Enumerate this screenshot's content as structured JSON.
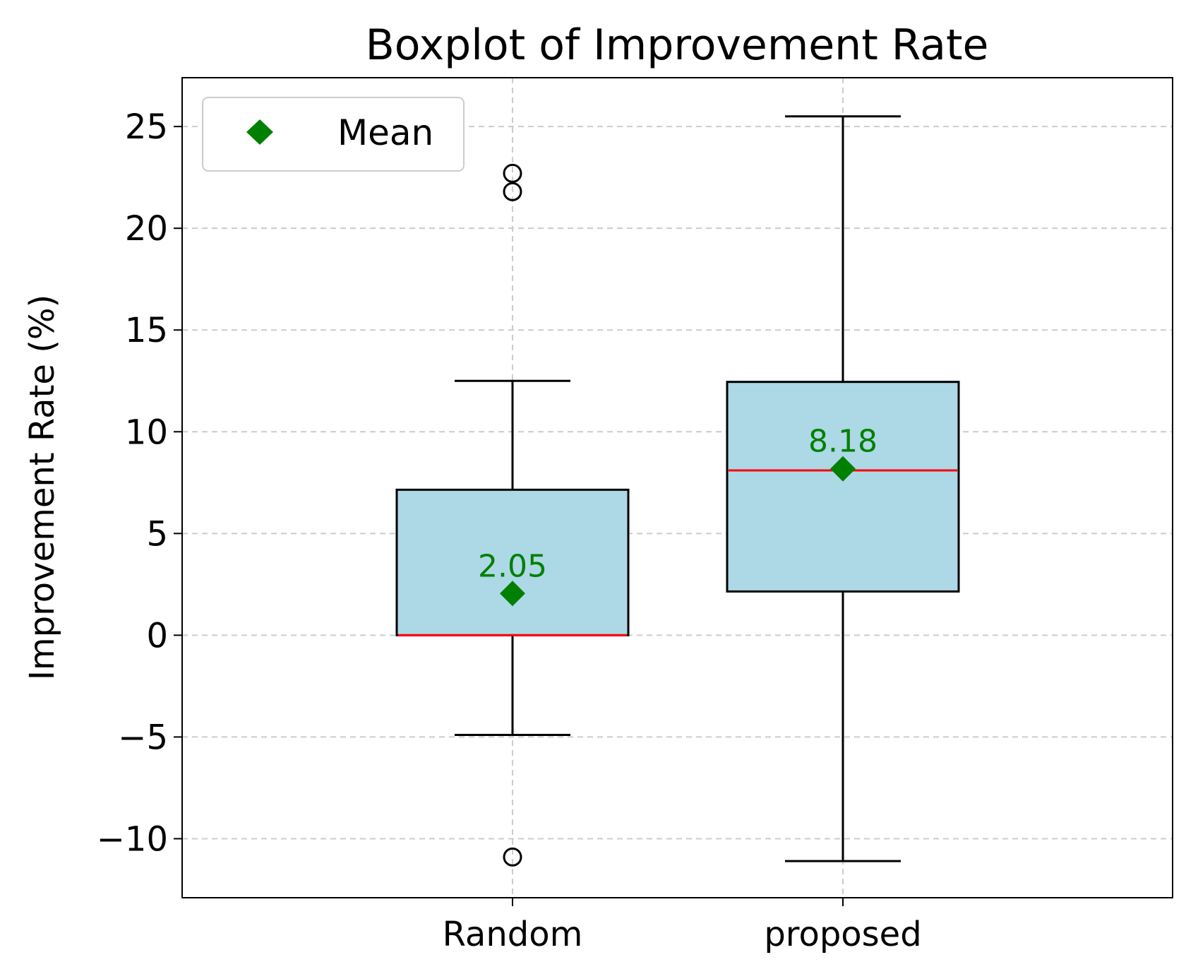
{
  "chart_data": {
    "type": "boxplot",
    "title": "Boxplot of Improvement Rate",
    "xlabel": "",
    "ylabel": "Improvement Rate (%)",
    "ylim": [
      -12.9,
      27.4
    ],
    "yticks": [
      -10,
      -5,
      0,
      5,
      10,
      15,
      20,
      25
    ],
    "ytick_labels": [
      "−10",
      "−5",
      "0",
      "5",
      "10",
      "15",
      "20",
      "25"
    ],
    "grid": true,
    "legend": {
      "entries": [
        "Mean"
      ],
      "placement": "upper-left"
    },
    "categories": [
      "Random",
      "proposed"
    ],
    "boxes": [
      {
        "category": "Random",
        "whisker_low": -4.9,
        "q1": 0.0,
        "median": 0.0,
        "q3": 7.15,
        "whisker_high": 12.5,
        "mean": 2.05,
        "mean_label": "2.05",
        "outliers": [
          -10.9,
          21.8,
          22.7
        ]
      },
      {
        "category": "proposed",
        "whisker_low": -11.1,
        "q1": 2.15,
        "median": 8.1,
        "q3": 12.45,
        "whisker_high": 25.5,
        "mean": 8.18,
        "mean_label": "8.18",
        "outliers": []
      }
    ],
    "colors": {
      "box_fill": "#add8e6",
      "box_edge": "#000000",
      "median": "#ff0000",
      "mean": "#008000",
      "grid": "#cccccc"
    }
  }
}
